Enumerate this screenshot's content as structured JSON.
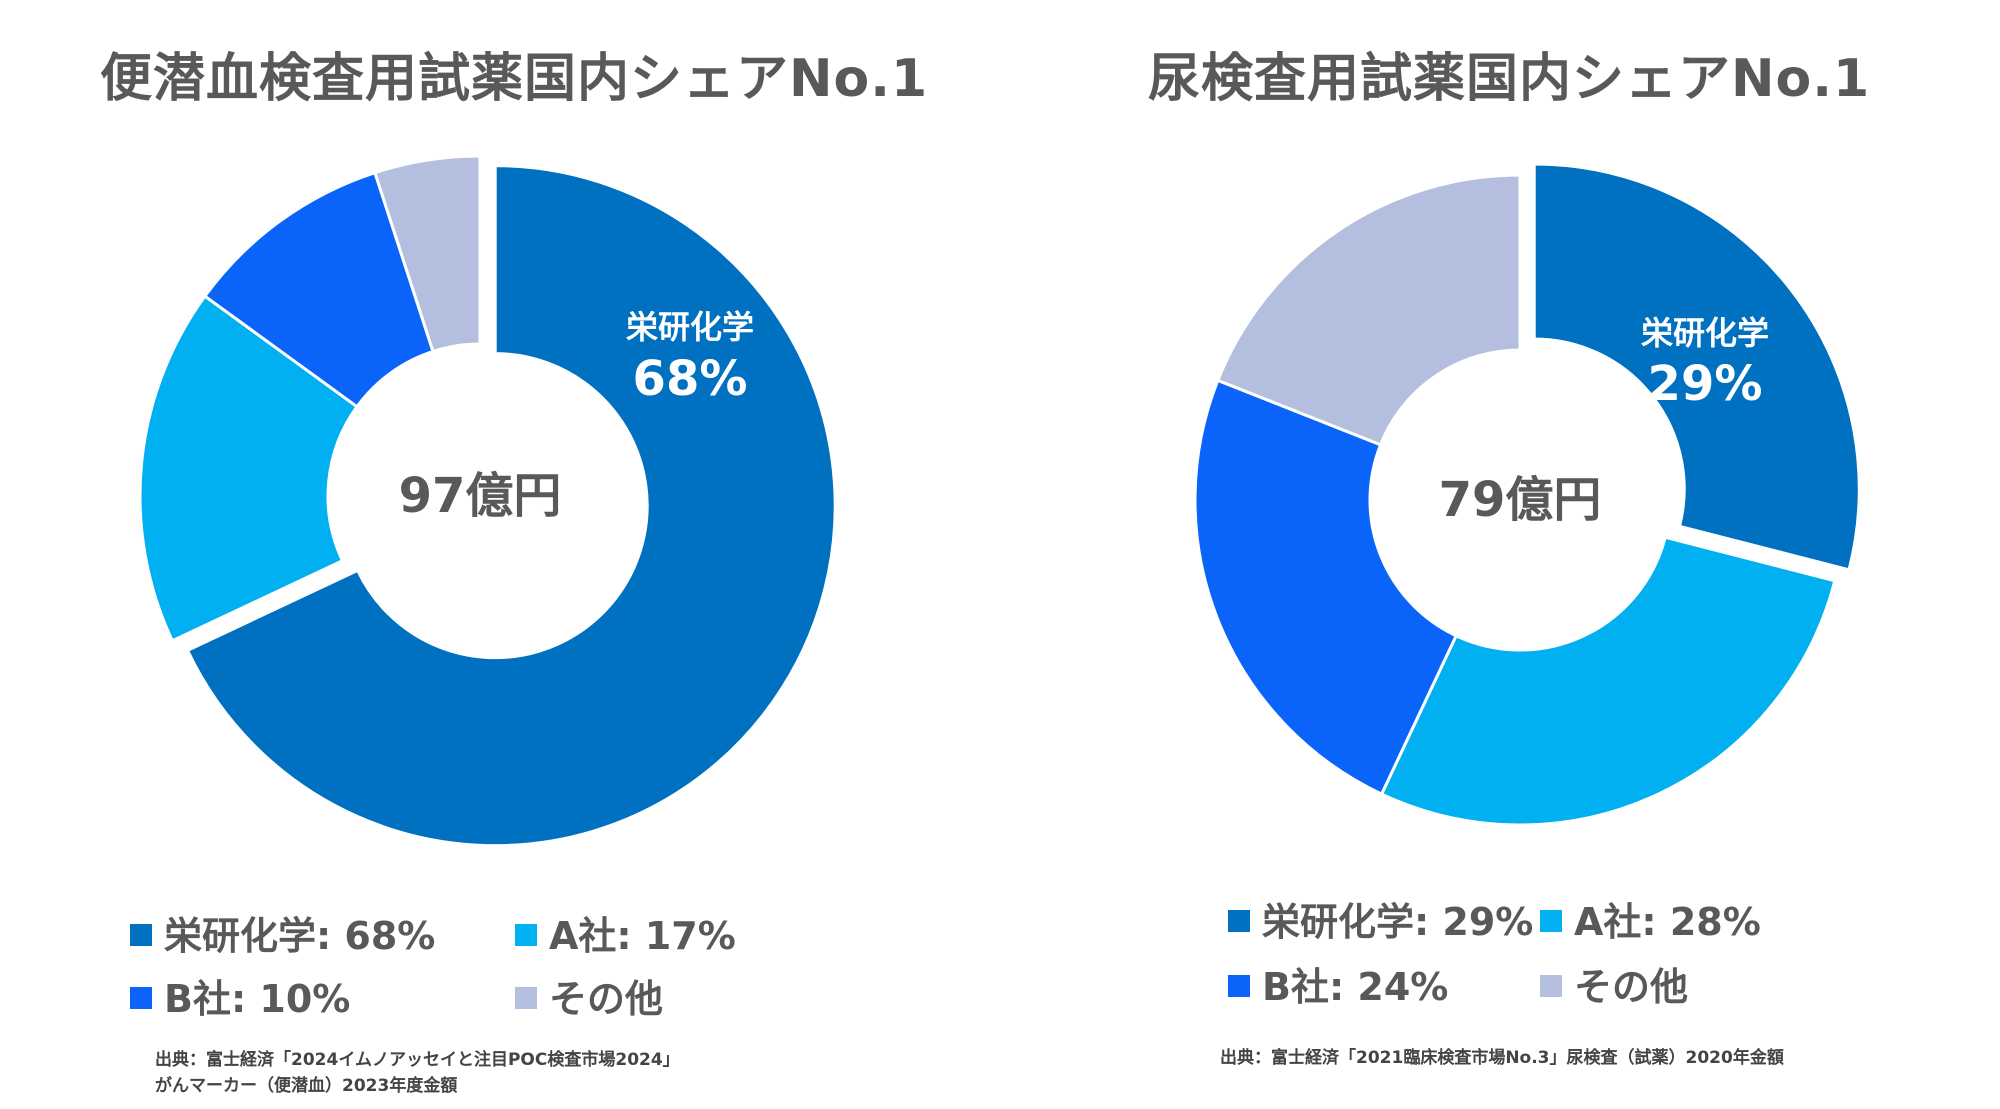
{
  "chart_data": [
    {
      "type": "donut",
      "title": "便潜血検査用試薬国内シェアNo.1",
      "center_label": "97億円",
      "highlight_label": {
        "name": "栄研化学",
        "value": "68%"
      },
      "series": [
        {
          "name": "栄研化学",
          "value": 68,
          "color": "#0070c0",
          "exploded": true
        },
        {
          "name": "A社",
          "value": 17,
          "color": "#00b0f0"
        },
        {
          "name": "B社",
          "value": 10,
          "color": "#0a64fa"
        },
        {
          "name": "その他",
          "value": 5,
          "color": "#b4bfe0"
        }
      ],
      "legend": [
        "栄研化学: 68%",
        "A社: 17%",
        "B社: 10%",
        "その他"
      ],
      "source_lines": [
        "出典：富士経済「2024イムノアッセイと注目POC検査市場2024」",
        "がんマーカー（便潜血）2023年度金額"
      ]
    },
    {
      "type": "donut",
      "title": "尿検査用試薬国内シェアNo.1",
      "center_label": "79億円",
      "highlight_label": {
        "name": "栄研化学",
        "value": "29%"
      },
      "series": [
        {
          "name": "栄研化学",
          "value": 29,
          "color": "#0070c0",
          "exploded": true
        },
        {
          "name": "A社",
          "value": 28,
          "color": "#00b0f0"
        },
        {
          "name": "B社",
          "value": 24,
          "color": "#0a64fa"
        },
        {
          "name": "その他",
          "value": 19,
          "color": "#b4bfe0"
        }
      ],
      "legend": [
        "栄研化学: 29%",
        "A社: 28%",
        "B社: 24%",
        "その他"
      ],
      "source_lines": [
        "出典：富士経済「2021臨床検査市場No.3」尿検査（試薬）2020年金額"
      ]
    }
  ]
}
